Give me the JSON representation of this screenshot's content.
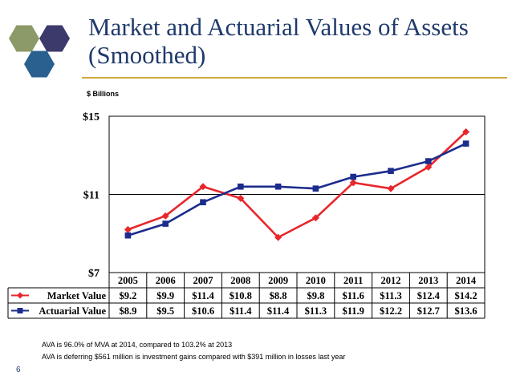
{
  "slide": {
    "title": "Market and Actuarial Values of Assets (Smoothed)",
    "page_number": "6",
    "notes": [
      "AVA is 96.0% of MVA at 2014, compared to 103.2% at 2013",
      "AVA is deferring $561 million is investment gains compared with $391 million in losses last year"
    ],
    "logo_colors": [
      "#8c9968",
      "#3b3a6b",
      "#2a6090"
    ]
  },
  "chart_data": {
    "type": "line",
    "ylabel": "$ Billions",
    "ylim": [
      7,
      15
    ],
    "yticks": [
      7,
      11,
      15
    ],
    "ytick_labels": [
      "$7",
      "$11",
      "$15"
    ],
    "categories": [
      "2005",
      "2006",
      "2007",
      "2008",
      "2009",
      "2010",
      "2011",
      "2012",
      "2013",
      "2014"
    ],
    "grid": "horizontal",
    "data_table": true,
    "series": [
      {
        "name": "Market Value",
        "color": "#e8262b",
        "marker": "diamond",
        "values": [
          9.2,
          9.9,
          11.4,
          10.8,
          8.8,
          9.8,
          11.6,
          11.3,
          12.4,
          14.2
        ],
        "labels": [
          "$9.2",
          "$9.9",
          "$11.4",
          "$10.8",
          "$8.8",
          "$9.8",
          "$11.6",
          "$11.3",
          "$12.4",
          "$14.2"
        ]
      },
      {
        "name": "Actuarial Value",
        "color": "#1c2c8c",
        "marker": "square",
        "values": [
          8.9,
          9.5,
          10.6,
          11.4,
          11.4,
          11.3,
          11.9,
          12.2,
          12.7,
          13.6
        ],
        "labels": [
          "$8.9",
          "$9.5",
          "$10.6",
          "$11.4",
          "$11.4",
          "$11.3",
          "$11.9",
          "$12.2",
          "$12.7",
          "$13.6"
        ]
      }
    ]
  }
}
